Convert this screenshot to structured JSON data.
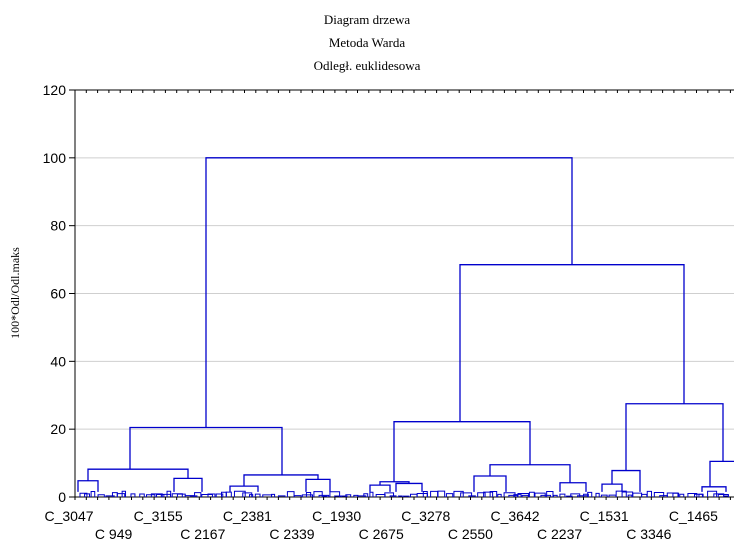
{
  "chart_data": {
    "type": "dendrogram",
    "title": [
      "Diagram drzewa",
      "Metoda Warda",
      "Odległ. euklidesowa"
    ],
    "xlabel": "",
    "ylabel": "100*Odl/Odl.maks",
    "ylim": [
      0,
      120
    ],
    "y_ticks": [
      0,
      20,
      40,
      60,
      80,
      100,
      120
    ],
    "grid": true,
    "leaf_labels_row1": [
      "C_3047",
      "C_3155",
      "C_2381",
      "C_1930",
      "C_3278",
      "C_3642",
      "C_1531",
      "C_1465"
    ],
    "leaf_labels_row2": [
      "C_949",
      "C_2167",
      "C_2339",
      "C_2675",
      "C_2550",
      "C_2237",
      "C_3346"
    ],
    "line_color": "#0000cc",
    "merges": [
      {
        "height": 100.0,
        "members": [
          "A",
          "B"
        ]
      },
      {
        "height": 68.5,
        "members": [
          "B1",
          "B2"
        ]
      },
      {
        "height": 27.5,
        "members": [
          "B2a",
          "B2b"
        ]
      },
      {
        "height": 22.2,
        "members": [
          "B1a",
          "B1b"
        ]
      },
      {
        "height": 20.5,
        "members": [
          "A1",
          "A2"
        ]
      },
      {
        "height": 10.5,
        "members": [
          "B2b1",
          "B2b2"
        ]
      },
      {
        "height": 9.5,
        "members": [
          "B1b1",
          "B1b2"
        ]
      },
      {
        "height": 8.2,
        "members": [
          "A1a",
          "A1b"
        ]
      },
      {
        "height": 7.8,
        "members": [
          "B2a1",
          "B2a2"
        ]
      },
      {
        "height": 6.5,
        "members": [
          "A2a",
          "A2b"
        ]
      },
      {
        "height": 6.2,
        "members": [
          "B1b1a",
          "B1b1b"
        ]
      },
      {
        "height": 5.5,
        "members": [
          "A1b1",
          "A1b2"
        ]
      },
      {
        "height": 5.2,
        "members": [
          "A2b1",
          "A2b2"
        ]
      },
      {
        "height": 4.8,
        "members": [
          "A1a1",
          "A1a2"
        ]
      },
      {
        "height": 4.5,
        "members": [
          "B1a1",
          "B1a2"
        ]
      },
      {
        "height": 4.2,
        "members": [
          "B1b2a",
          "B1b2b"
        ]
      },
      {
        "height": 4.0,
        "members": [
          "B1a2a",
          "B1a2b"
        ]
      },
      {
        "height": 3.8,
        "members": [
          "B2a1a",
          "B2a1b"
        ]
      },
      {
        "height": 3.5,
        "members": [
          "B1a1a",
          "B1a1b"
        ]
      },
      {
        "height": 3.2,
        "members": [
          "A2a1",
          "A2a2"
        ]
      },
      {
        "height": 3.0,
        "members": [
          "B2b2a",
          "B2b2b"
        ]
      }
    ]
  }
}
